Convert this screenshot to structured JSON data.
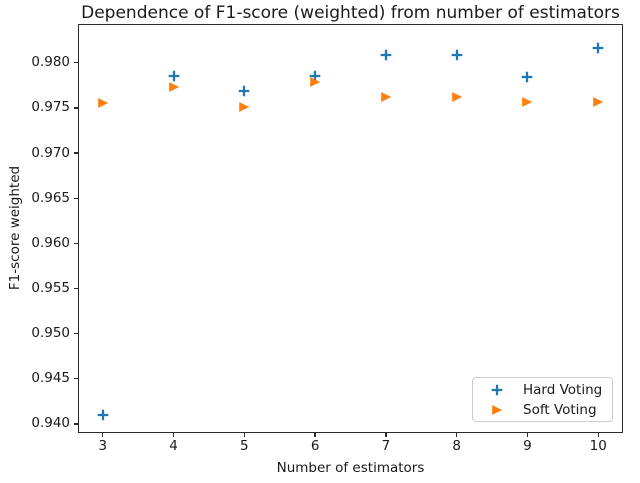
{
  "chart_data": {
    "type": "scatter",
    "title": "Dependence of F1-score (weighted) from number of estimators",
    "xlabel": "Number of estimators",
    "ylabel": "F1-score weighted",
    "x": [
      3,
      4,
      5,
      6,
      7,
      8,
      9,
      10
    ],
    "series": [
      {
        "name": "Hard Voting",
        "marker": "plus",
        "color": "#1f77b4",
        "values": [
          0.9413,
          0.9789,
          0.9772,
          0.9789,
          0.9812,
          0.9812,
          0.9788,
          0.982
        ]
      },
      {
        "name": "Soft Voting",
        "marker": "triangle-right",
        "color": "#ff7f0e",
        "values": [
          0.9759,
          0.9777,
          0.9754,
          0.9782,
          0.9766,
          0.9766,
          0.976,
          0.976
        ]
      }
    ],
    "xticks": [
      3,
      4,
      5,
      6,
      7,
      8,
      9,
      10
    ],
    "yticks": [
      0.94,
      0.945,
      0.95,
      0.955,
      0.96,
      0.965,
      0.97,
      0.975,
      0.98
    ],
    "xlim": [
      2.65,
      10.35
    ],
    "ylim": [
      0.939,
      0.9843
    ],
    "grid": false,
    "legend_position": "lower right"
  }
}
